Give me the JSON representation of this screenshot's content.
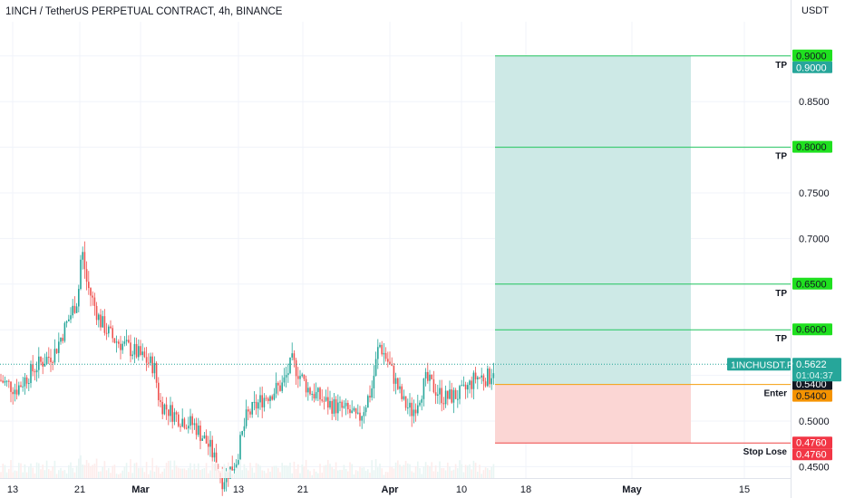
{
  "header": {
    "title": "1INCH / TetherUS PERPETUAL CONTRACT, 4h, BINANCE",
    "currency": "USDT"
  },
  "colors": {
    "up": "#26a69a",
    "down": "#ef5350",
    "profit_zone": "#cde9e6",
    "loss_zone": "#fbd6d4",
    "tp_line": "#22c55e",
    "tp_badge": "#1fe01f",
    "stop_line": "#ef4444",
    "stop_badge": "#f23645",
    "entry_line": "#f59e0b",
    "entry_badge": "#f59300",
    "current_badge": "#26a69a",
    "dark_badge": "#131722"
  },
  "chart_data": {
    "type": "candlestick",
    "title": "1INCH / TetherUS PERPETUAL CONTRACT, 4h, BINANCE",
    "y_unit": "USDT",
    "ylim": [
      0.4375,
      0.9375
    ],
    "y_ticks": [
      "0.4500",
      "0.5000",
      "0.5500",
      "0.6000",
      "0.6500",
      "0.7000",
      "0.7500",
      "0.8000",
      "0.8500",
      "0.9000"
    ],
    "x_ticks": [
      "13",
      "21",
      "Mar",
      "13",
      "21",
      "Apr",
      "10",
      "18",
      "May",
      "15"
    ],
    "approx_price_path": [
      {
        "label": "13",
        "price": 0.54
      },
      {
        "label": "21",
        "price": 0.62
      },
      {
        "label": "21 peak",
        "price": 0.693
      },
      {
        "label": "Mar",
        "price": 0.565
      },
      {
        "label": "Mar low",
        "price": 0.43
      },
      {
        "label": "13",
        "price": 0.47
      },
      {
        "label": "21",
        "price": 0.55
      },
      {
        "label": "Apr peak",
        "price": 0.598
      },
      {
        "label": "Apr",
        "price": 0.55
      },
      {
        "label": "10",
        "price": 0.53
      },
      {
        "label": "last",
        "price": 0.5622
      }
    ],
    "position": {
      "side": "long",
      "entry": 0.54,
      "stop": 0.476,
      "targets": [
        0.6,
        0.65,
        0.8,
        0.9
      ]
    },
    "annotations": [
      {
        "text": "TP",
        "price": 0.9
      },
      {
        "text": "TP",
        "price": 0.8
      },
      {
        "text": "TP",
        "price": 0.65
      },
      {
        "text": "TP",
        "price": 0.6
      },
      {
        "text": "Enter",
        "price": 0.54
      },
      {
        "text": "Stop Lose",
        "price": 0.476
      }
    ],
    "price_badges": [
      {
        "text": "0.9000",
        "price": 0.9,
        "kind": "tp",
        "stack": 0
      },
      {
        "text": "0.9000",
        "price": 0.9,
        "kind": "tp-dark",
        "stack": 1
      },
      {
        "text": "0.8000",
        "price": 0.8,
        "kind": "tp",
        "stack": 0
      },
      {
        "text": "0.6500",
        "price": 0.65,
        "kind": "tp",
        "stack": 0
      },
      {
        "text": "0.6000",
        "price": 0.6,
        "kind": "tp",
        "stack": 0
      },
      {
        "text": "0.5400",
        "price": 0.54,
        "kind": "dark",
        "stack": 0
      },
      {
        "text": "0.5400",
        "price": 0.54,
        "kind": "entry",
        "stack": 1
      },
      {
        "text": "0.4760",
        "price": 0.476,
        "kind": "stop",
        "stack": 0
      },
      {
        "text": "0.4760",
        "price": 0.476,
        "kind": "stop",
        "stack": 1
      }
    ],
    "current": {
      "symbol": "1INCHUSDT.P",
      "price": 0.5622,
      "price_text": "0.5622",
      "countdown": "01:04:37"
    }
  }
}
